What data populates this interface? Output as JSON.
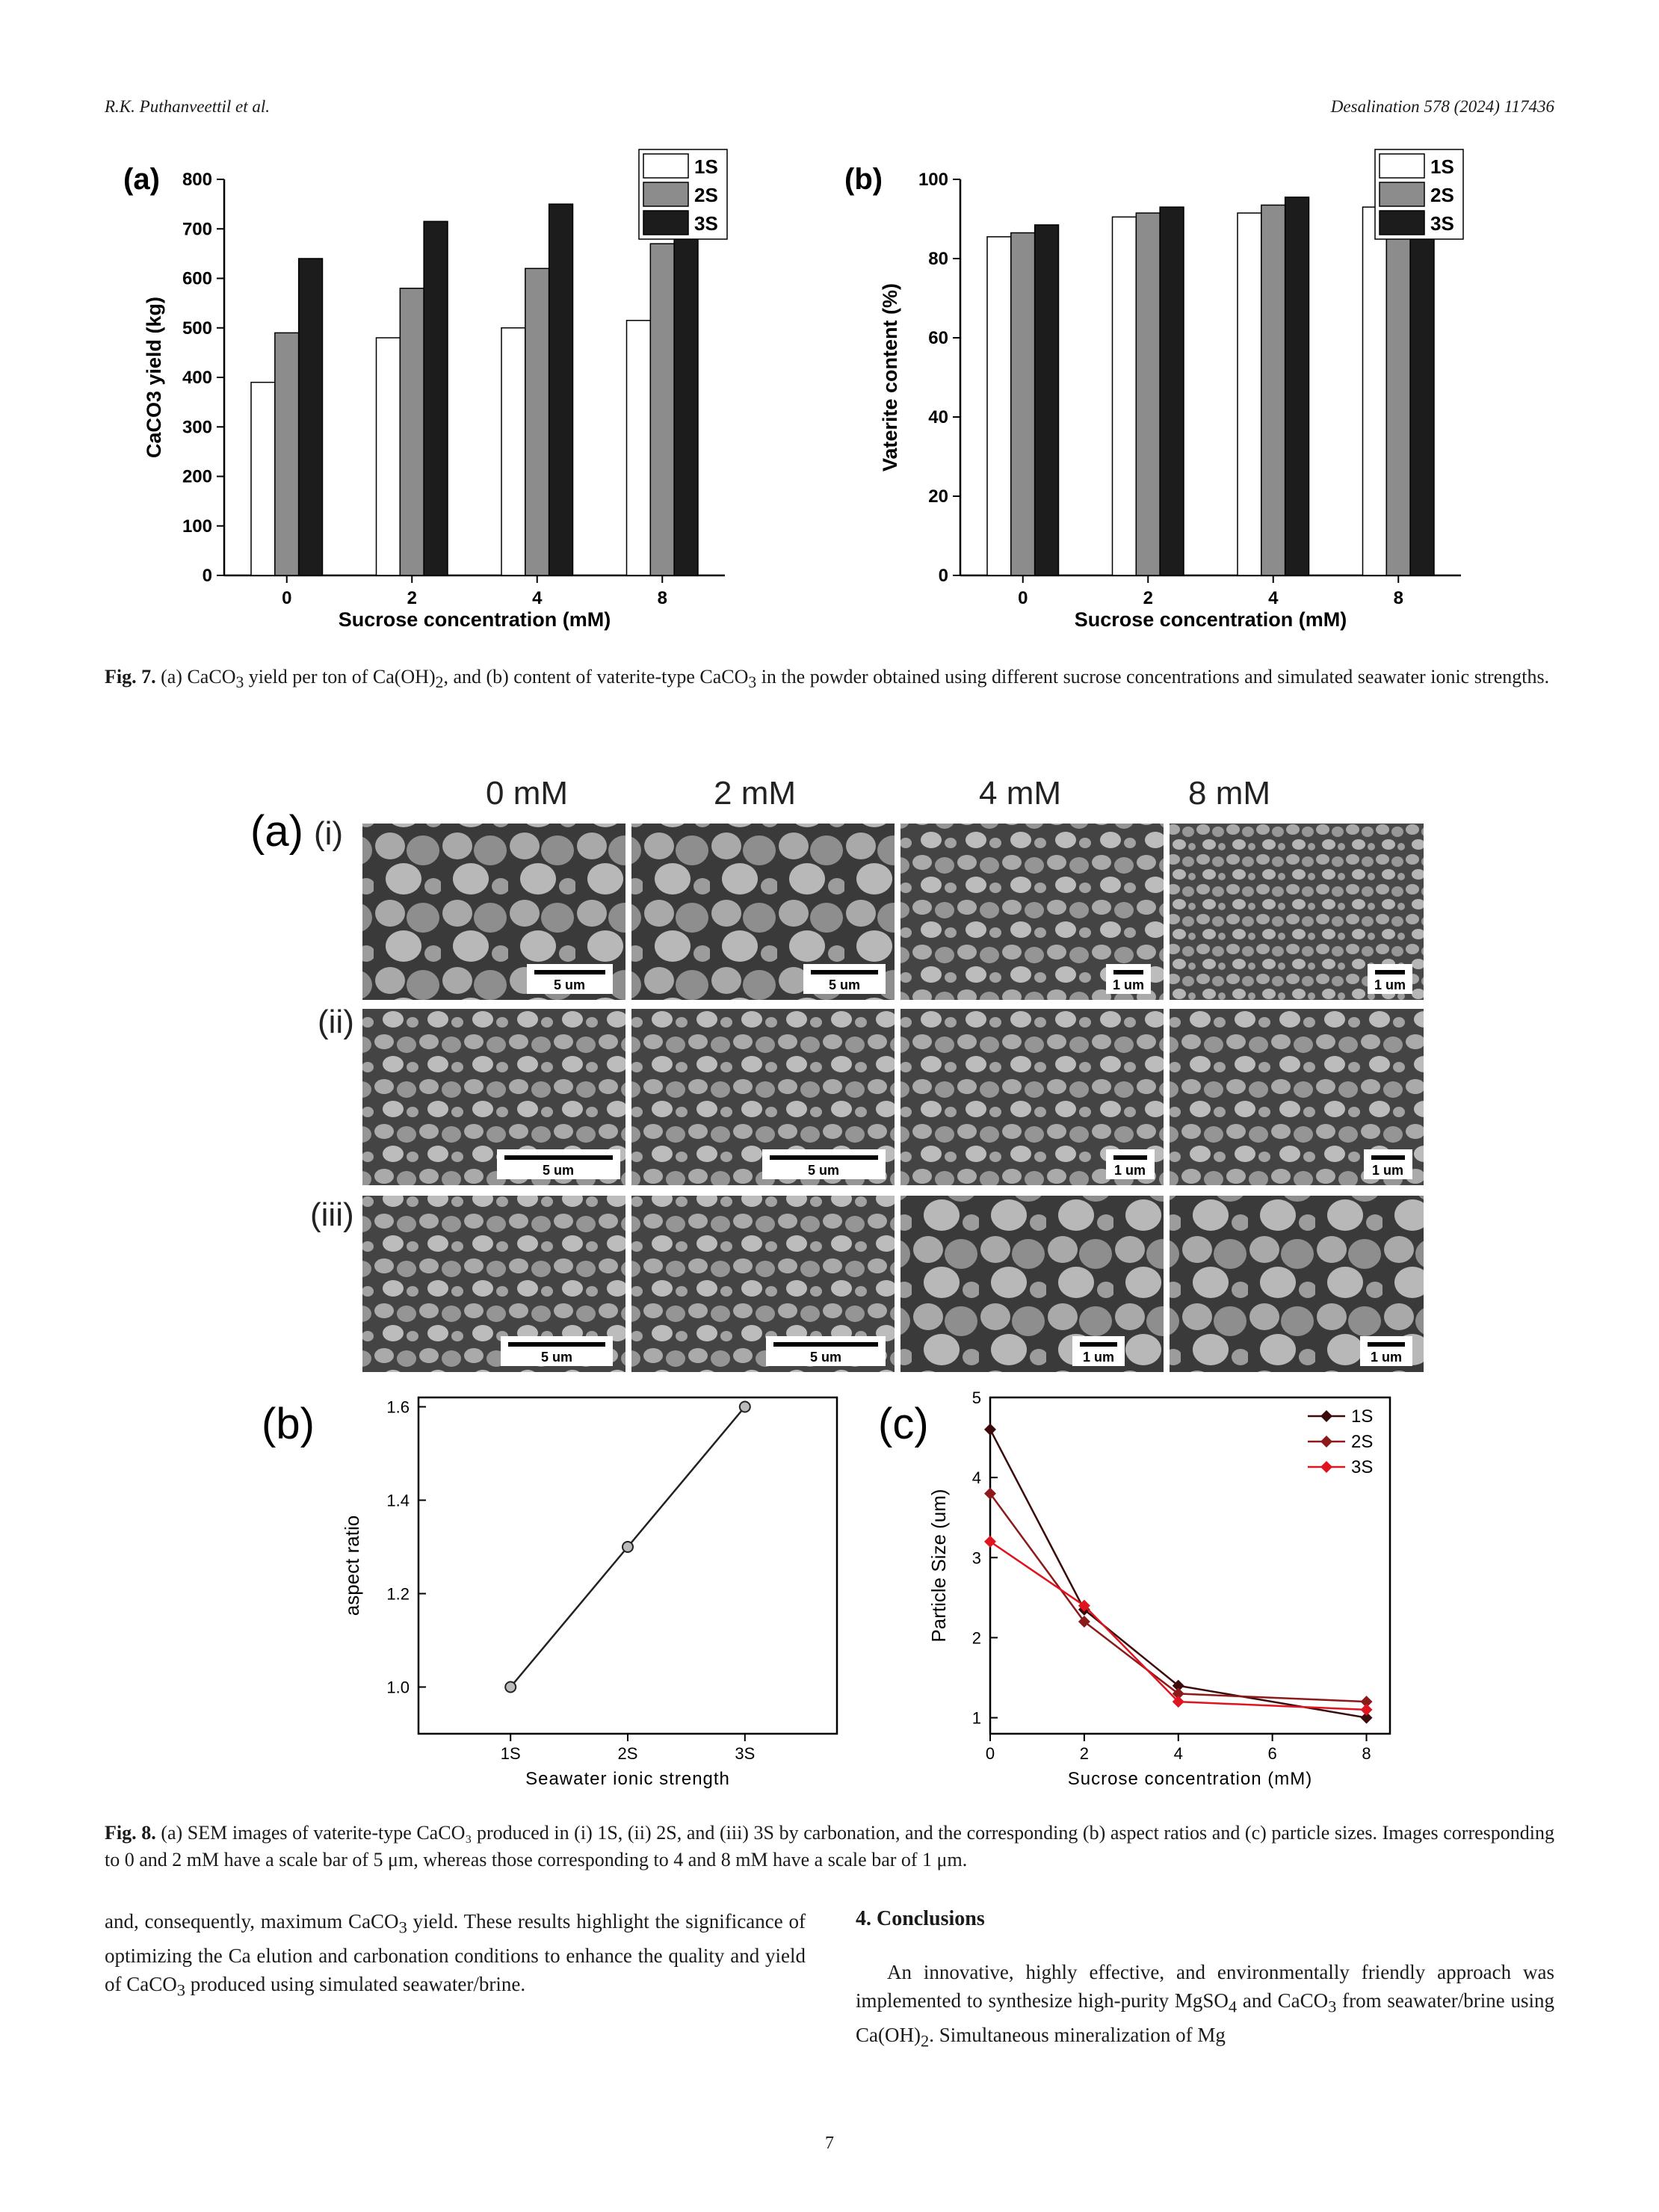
{
  "header": {
    "left": "R.K. Puthanveettil et al.",
    "right": "Desalination 578 (2024) 117436"
  },
  "fig7": {
    "panel_a": "(a)",
    "panel_b": "(b)",
    "caption_label": "Fig. 7.",
    "caption_text_1": "(a) CaCO",
    "caption_text_2": " yield per ton of Ca(OH)",
    "caption_text_3": ", and (b) content of vaterite-type CaCO",
    "caption_text_4": " in the powder obtained using different sucrose concentrations and simulated seawater ionic strengths.",
    "sub3": "3",
    "sub2": "2"
  },
  "fig8": {
    "panel_a": "(a)",
    "panel_b": "(b)",
    "panel_c": "(c)",
    "col_headers": [
      "0 mM",
      "2 mM",
      "4 mM",
      "8 mM"
    ],
    "row_labels": [
      "(i)",
      "(ii)",
      "(iii)"
    ],
    "scale_bars": [
      [
        "5 um",
        "5 um",
        "1 um",
        "1 um"
      ],
      [
        "5 um",
        "5 um",
        "1 um",
        "1 um"
      ],
      [
        "5 um",
        "5 um",
        "1 um",
        "1 um"
      ]
    ],
    "caption_label": "Fig. 8.",
    "caption_text": "(a) SEM images of vaterite-type CaCO₃ produced in (i) 1S, (ii) 2S, and (iii) 3S by carbonation, and the corresponding (b) aspect ratios and (c) particle sizes. Images corresponding to 0 and 2 mM have a scale bar of 5 μm, whereas those corresponding to 4 and 8 mM have a scale bar of 1 μm."
  },
  "chart_data": [
    {
      "type": "bar",
      "title": "",
      "xlabel": "Sucrose concentration (mM)",
      "ylabel": "CaCO3 yield (kg)",
      "categories": [
        "0",
        "2",
        "4",
        "8"
      ],
      "ylim": [
        0,
        800
      ],
      "yticks": [
        0,
        100,
        200,
        300,
        400,
        500,
        600,
        700,
        800
      ],
      "legend_position": "top-right",
      "series": [
        {
          "name": "1S",
          "color": "#ffffff",
          "values": [
            390,
            480,
            500,
            515
          ]
        },
        {
          "name": "2S",
          "color": "#8c8c8c",
          "values": [
            490,
            580,
            620,
            670
          ]
        },
        {
          "name": "3S",
          "color": "#1c1c1c",
          "values": [
            640,
            715,
            750,
            770
          ]
        }
      ]
    },
    {
      "type": "bar",
      "title": "",
      "xlabel": "Sucrose concentration (mM)",
      "ylabel": "Vaterite content (%)",
      "categories": [
        "0",
        "2",
        "4",
        "8"
      ],
      "ylim": [
        0,
        100
      ],
      "yticks": [
        0,
        20,
        40,
        60,
        80,
        100
      ],
      "legend_position": "top-right",
      "series": [
        {
          "name": "1S",
          "color": "#ffffff",
          "values": [
            85.5,
            90.5,
            91.5,
            93
          ]
        },
        {
          "name": "2S",
          "color": "#8c8c8c",
          "values": [
            86.5,
            91.5,
            93.5,
            95
          ]
        },
        {
          "name": "3S",
          "color": "#1c1c1c",
          "values": [
            88.5,
            93,
            95.5,
            96.5
          ]
        }
      ]
    },
    {
      "type": "line",
      "title": "",
      "xlabel": "Seawater ionic strength",
      "ylabel": "aspect ratio",
      "categories": [
        "1S",
        "2S",
        "3S"
      ],
      "ylim": [
        0.9,
        1.62
      ],
      "yticks": [
        1.0,
        1.2,
        1.4,
        1.6
      ],
      "series": [
        {
          "color": "#222222",
          "values": [
            1.0,
            1.3,
            1.6
          ]
        }
      ]
    },
    {
      "type": "line",
      "title": "",
      "xlabel": "Sucrose concentration (mM)",
      "ylabel": "Particle Size (um)",
      "x": [
        0,
        2,
        4,
        8
      ],
      "xlim": [
        0,
        8.5
      ],
      "xticks": [
        0,
        2,
        4,
        6,
        8
      ],
      "ylim": [
        0.8,
        5
      ],
      "yticks": [
        1,
        2,
        3,
        4,
        5
      ],
      "legend_position": "top-right",
      "series": [
        {
          "name": "1S",
          "color": "#3b0a0a",
          "values": [
            4.6,
            2.35,
            1.4,
            1.0
          ]
        },
        {
          "name": "2S",
          "color": "#8b1a1a",
          "values": [
            3.8,
            2.2,
            1.3,
            1.2
          ]
        },
        {
          "name": "3S",
          "color": "#e0141e",
          "values": [
            3.2,
            2.4,
            1.2,
            1.1
          ]
        }
      ]
    }
  ],
  "body_left": {
    "p1_a": "and, consequently, maximum CaCO",
    "p1_sub": "3",
    "p1_b": " yield. These results highlight the significance of optimizing the Ca elution and carbonation conditions to enhance the quality and yield of CaCO",
    "p1_sub2": "3",
    "p1_c": " produced using simulated seawater/brine."
  },
  "body_right": {
    "section_title": "4.  Conclusions",
    "p1_a": "An innovative, highly effective, and environmentally friendly approach was implemented to synthesize high-purity MgSO",
    "p1_sub1": "4",
    "p1_b": " and CaCO",
    "p1_sub2": "3",
    "p1_c": " from seawater/brine using Ca(OH)",
    "p1_sub3": "2",
    "p1_d": ". Simultaneous mineralization of Mg"
  },
  "page_number": "7"
}
